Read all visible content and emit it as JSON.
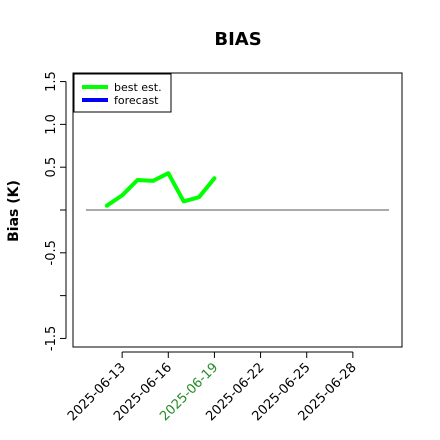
{
  "chart_data": {
    "type": "line",
    "title": "BIAS",
    "ylabel": "Bias (K)",
    "xlabel": "",
    "ylim": [
      -1.6,
      1.6
    ],
    "y_ticks": [
      {
        "value": -1.5,
        "label": "-1.5"
      },
      {
        "value": -1.0,
        "label": ""
      },
      {
        "value": -0.5,
        "label": "-0.5"
      },
      {
        "value": 0.0,
        "label": ""
      },
      {
        "value": 0.5,
        "label": "0.5"
      },
      {
        "value": 1.0,
        "label": "1.0"
      },
      {
        "value": 1.5,
        "label": "1.5"
      }
    ],
    "x_ticks": [
      {
        "label": "2025-06-13",
        "color": "#000000"
      },
      {
        "label": "2025-06-16",
        "color": "#000000"
      },
      {
        "label": "2025-06-19",
        "color": "#228B22"
      },
      {
        "label": "2025-06-22",
        "color": "#000000"
      },
      {
        "label": "2025-06-25",
        "color": "#000000"
      },
      {
        "label": "2025-06-28",
        "color": "#000000"
      }
    ],
    "x_start": "2025-06-10",
    "x_end": "2025-07-01",
    "reference_line": 0.0,
    "series": [
      {
        "name": "best est.",
        "color": "#00ff00",
        "x": [
          "2025-06-12",
          "2025-06-13",
          "2025-06-14",
          "2025-06-15",
          "2025-06-16",
          "2025-06-17",
          "2025-06-18",
          "2025-06-19"
        ],
        "values": [
          0.05,
          0.17,
          0.35,
          0.34,
          0.43,
          0.1,
          0.15,
          0.37
        ]
      },
      {
        "name": "forecast",
        "color": "#0000ff",
        "x": [],
        "values": []
      }
    ],
    "legend_position": "top-left",
    "grid": false
  }
}
